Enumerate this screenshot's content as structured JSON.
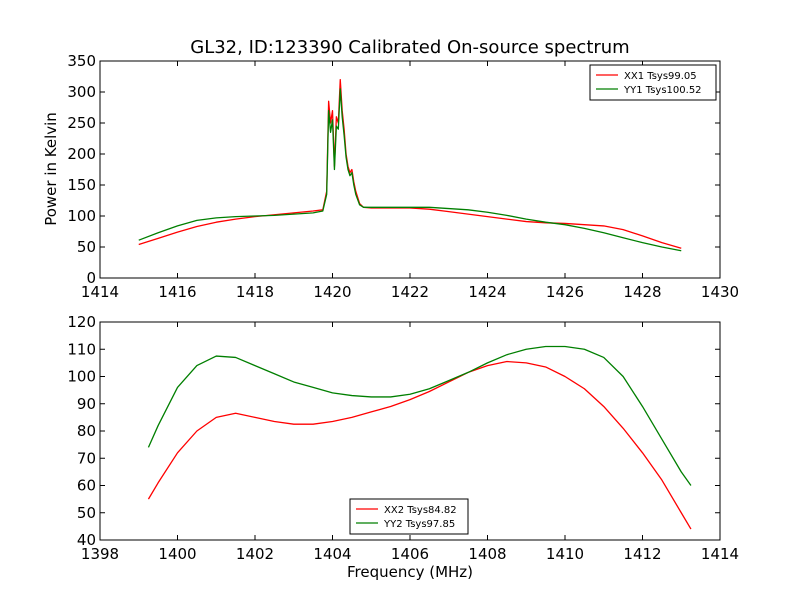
{
  "figure": {
    "title": "GL32, ID:123390 Calibrated On-source spectrum",
    "xlabel_bottom": "Frequency (MHz)",
    "colors": {
      "red": "#ff0000",
      "green": "#007f00"
    }
  },
  "chart_data": [
    {
      "type": "line",
      "title": "GL32, ID:123390 Calibrated On-source spectrum",
      "xlabel": "",
      "ylabel": "Power in Kelvin",
      "xlim": [
        1414,
        1430
      ],
      "ylim": [
        0,
        350
      ],
      "xticks": [
        1414,
        1416,
        1418,
        1420,
        1422,
        1424,
        1426,
        1428,
        1430
      ],
      "yticks": [
        0,
        50,
        100,
        150,
        200,
        250,
        300,
        350
      ],
      "legend": "top-right",
      "grid": false,
      "series": [
        {
          "name": "XX1 Tsys99.05",
          "color": "#ff0000",
          "x": [
            1415.0,
            1415.5,
            1416.0,
            1416.5,
            1417.0,
            1417.5,
            1418.0,
            1418.5,
            1419.0,
            1419.5,
            1419.75,
            1419.85,
            1419.9,
            1419.95,
            1420.0,
            1420.05,
            1420.1,
            1420.15,
            1420.2,
            1420.25,
            1420.3,
            1420.35,
            1420.4,
            1420.45,
            1420.5,
            1420.55,
            1420.6,
            1420.7,
            1420.8,
            1421.0,
            1421.5,
            1422.0,
            1422.5,
            1423.0,
            1423.5,
            1424.0,
            1424.5,
            1425.0,
            1425.5,
            1426.0,
            1426.5,
            1427.0,
            1427.5,
            1428.0,
            1428.5,
            1429.0
          ],
          "y": [
            54,
            64,
            74,
            83,
            90,
            95,
            99,
            102,
            105,
            108,
            110,
            140,
            285,
            250,
            270,
            180,
            260,
            250,
            320,
            270,
            240,
            200,
            180,
            170,
            175,
            155,
            140,
            120,
            114,
            113,
            113,
            113,
            111,
            107,
            103,
            99,
            95,
            91,
            89,
            88,
            86,
            84,
            78,
            68,
            57,
            48
          ]
        },
        {
          "name": "YY1 Tsys100.52",
          "color": "#007f00",
          "x": [
            1415.0,
            1415.5,
            1416.0,
            1416.5,
            1417.0,
            1417.5,
            1418.0,
            1418.5,
            1419.0,
            1419.5,
            1419.75,
            1419.85,
            1419.9,
            1419.95,
            1420.0,
            1420.05,
            1420.1,
            1420.15,
            1420.2,
            1420.25,
            1420.3,
            1420.35,
            1420.4,
            1420.45,
            1420.5,
            1420.55,
            1420.6,
            1420.7,
            1420.8,
            1421.0,
            1421.5,
            1422.0,
            1422.5,
            1423.0,
            1423.5,
            1424.0,
            1424.5,
            1425.0,
            1425.5,
            1426.0,
            1426.5,
            1427.0,
            1427.5,
            1428.0,
            1428.5,
            1429.0
          ],
          "y": [
            61,
            73,
            84,
            93,
            97,
            99,
            100,
            101,
            103,
            105,
            108,
            135,
            270,
            235,
            255,
            175,
            245,
            240,
            305,
            260,
            230,
            195,
            175,
            165,
            170,
            150,
            135,
            118,
            114,
            114,
            114,
            114,
            114,
            112,
            110,
            106,
            101,
            95,
            90,
            86,
            80,
            73,
            65,
            57,
            50,
            44
          ]
        }
      ]
    },
    {
      "type": "line",
      "title": "",
      "xlabel": "Frequency (MHz)",
      "ylabel": "",
      "xlim": [
        1398,
        1414
      ],
      "ylim": [
        40,
        120
      ],
      "xticks": [
        1398,
        1400,
        1402,
        1404,
        1406,
        1408,
        1410,
        1412,
        1414
      ],
      "yticks": [
        40,
        50,
        60,
        70,
        80,
        90,
        100,
        110,
        120
      ],
      "legend": "bottom-center",
      "grid": false,
      "series": [
        {
          "name": "XX2 Tsys84.82",
          "color": "#ff0000",
          "x": [
            1399.25,
            1399.5,
            1400.0,
            1400.5,
            1401.0,
            1401.5,
            1402.0,
            1402.5,
            1403.0,
            1403.5,
            1404.0,
            1404.5,
            1405.0,
            1405.5,
            1406.0,
            1406.5,
            1407.0,
            1407.5,
            1408.0,
            1408.5,
            1409.0,
            1409.5,
            1410.0,
            1410.5,
            1411.0,
            1411.5,
            1412.0,
            1412.5,
            1413.0,
            1413.25
          ],
          "y": [
            55,
            61,
            72,
            80,
            85,
            86.5,
            85,
            83.5,
            82.5,
            82.5,
            83.5,
            85,
            87,
            89,
            91.5,
            94.5,
            98,
            101.5,
            104,
            105.5,
            105,
            103.5,
            100,
            95.5,
            89,
            81,
            72,
            62,
            50,
            44
          ]
        },
        {
          "name": "YY2 Tsys97.85",
          "color": "#007f00",
          "x": [
            1399.25,
            1399.5,
            1400.0,
            1400.5,
            1401.0,
            1401.5,
            1402.0,
            1402.5,
            1403.0,
            1403.5,
            1404.0,
            1404.5,
            1405.0,
            1405.5,
            1406.0,
            1406.5,
            1407.0,
            1407.5,
            1408.0,
            1408.5,
            1409.0,
            1409.5,
            1410.0,
            1410.5,
            1411.0,
            1411.5,
            1412.0,
            1412.5,
            1413.0,
            1413.25
          ],
          "y": [
            74,
            82,
            96,
            104,
            107.5,
            107,
            104,
            101,
            98,
            96,
            94,
            93,
            92.5,
            92.5,
            93.5,
            95.5,
            98.5,
            101.5,
            105,
            108,
            110,
            111,
            111,
            110,
            107,
            100,
            89,
            77,
            65,
            60
          ]
        }
      ]
    }
  ]
}
